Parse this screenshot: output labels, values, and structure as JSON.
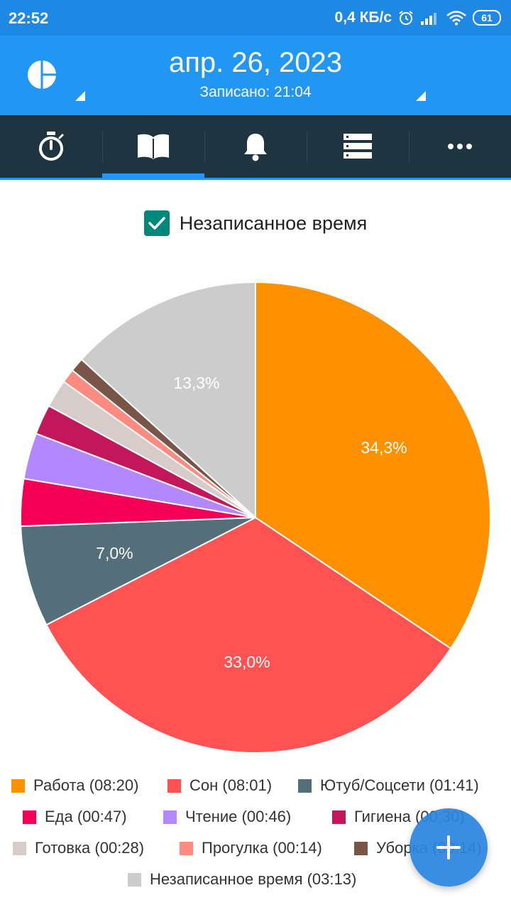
{
  "status_bar": {
    "time": "22:52",
    "network_speed": "0,4 КБ/с",
    "battery": "61"
  },
  "header": {
    "date": "апр. 26, 2023",
    "recorded": "Записано: 21:04"
  },
  "tabs": [
    {
      "icon": "stopwatch-icon",
      "active": false
    },
    {
      "icon": "book-icon",
      "active": true
    },
    {
      "icon": "bell-icon",
      "active": false
    },
    {
      "icon": "list-icon",
      "active": false
    },
    {
      "icon": "more-icon",
      "active": false
    }
  ],
  "unrecorded_toggle": {
    "label": "Незаписанное время",
    "checked": true
  },
  "chart_data": {
    "type": "pie",
    "labels": [
      "Работа",
      "Сон",
      "Ютуб/Соцсети",
      "Еда",
      "Чтение",
      "Гигиена",
      "Готовка",
      "Прогулка",
      "Уборка",
      "Незаписанное время"
    ],
    "durations": [
      "08:20",
      "08:01",
      "01:41",
      "00:47",
      "00:46",
      "00:30",
      "00:28",
      "00:14",
      "00:14",
      "03:13"
    ],
    "values": [
      500,
      481,
      101,
      47,
      46,
      30,
      28,
      14,
      14,
      193
    ],
    "percent_labels": [
      "34,3%",
      "33,0%",
      "7,0%",
      "",
      "",
      "",
      "",
      "",
      "",
      "13,3%"
    ],
    "colors": [
      "#ff9100",
      "#ff5252",
      "#546e7a",
      "#f50057",
      "#b388ff",
      "#c2185b",
      "#d7ccc8",
      "#ff8a80",
      "#795548",
      "#cccccc"
    ],
    "legend": [
      "Работа (08:20)",
      "Сон (08:01)",
      "Ютуб/Соцсети (01:41)",
      "Еда (00:47)",
      "Чтение (00:46)",
      "Гигиена (00:30)",
      "Готовка (00:28)",
      "Прогулка (00:14)",
      "Уборка (00:14)",
      "Незаписанное время (03:13)"
    ],
    "legend_placement": "bottom"
  },
  "fab": {
    "icon": "plus-icon"
  }
}
